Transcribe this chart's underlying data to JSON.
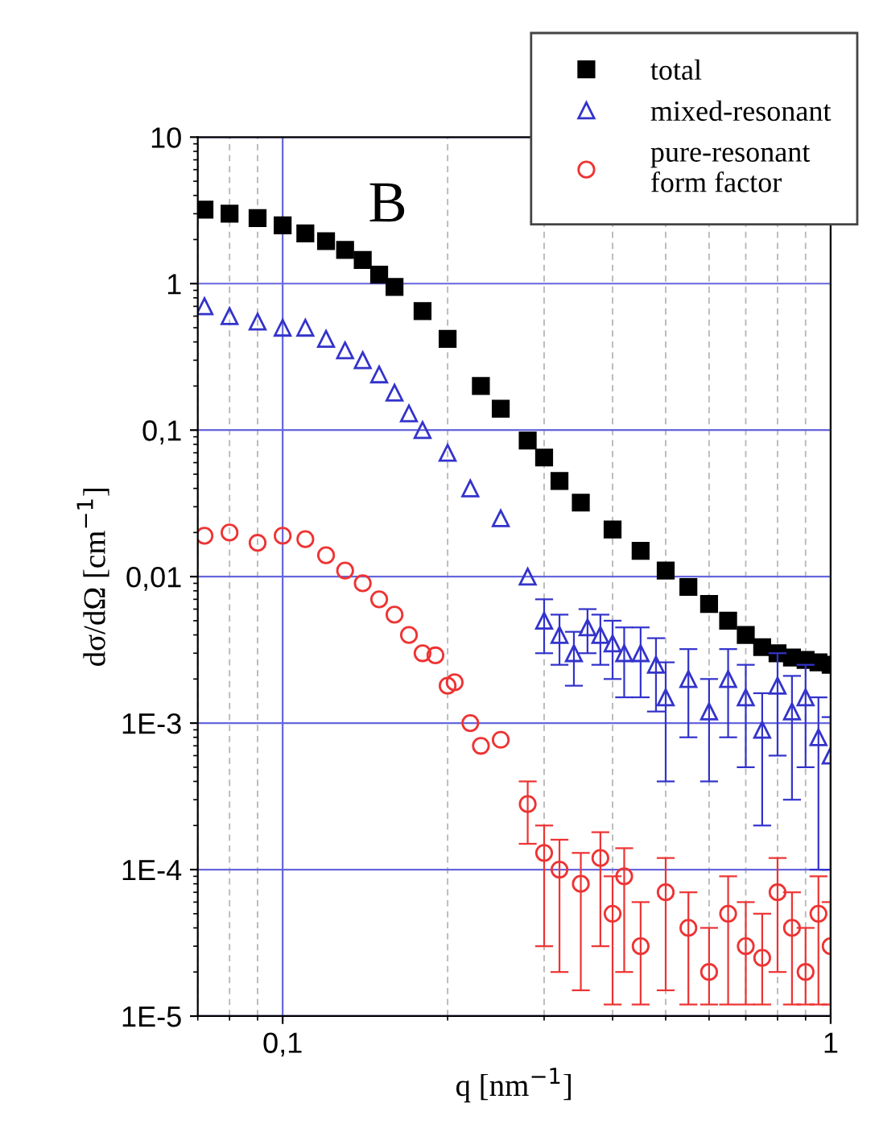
{
  "chart_data": {
    "type": "scatter",
    "xlabel": "q [nm$^{−1}$]",
    "ylabel": "dσ/dΩ [cm$^{−1}$]",
    "log": "xy",
    "grid": true,
    "legend": "top right",
    "xlim": [
      0.07,
      1
    ],
    "xticks": [
      {
        "value": 0.1,
        "label": "0,1"
      },
      1
    ],
    "ylim": [
      1e-05,
      10
    ],
    "yticks": [
      10,
      1,
      {
        "value": 0.1,
        "label": "0,1"
      },
      {
        "value": 0.01,
        "label": "0,01"
      },
      {
        "value": 0.001,
        "label": "1E-3"
      },
      {
        "value": 0.0001,
        "label": "1E-4"
      },
      {
        "value": 1e-05,
        "label": "1E-5"
      }
    ],
    "annotations": [
      "B"
    ],
    "series": [
      {
        "name": "total",
        "color": "#000000",
        "marker": "square",
        "x": [
          0.072,
          0.08,
          0.09,
          0.1,
          0.11,
          0.12,
          0.13,
          0.14,
          0.15,
          0.16,
          0.18,
          0.2,
          0.23,
          0.25,
          0.28,
          0.3,
          0.32,
          0.35,
          0.4,
          0.45,
          0.5,
          0.55,
          0.6,
          0.65,
          0.7,
          0.75,
          0.8,
          0.85,
          0.9,
          0.95,
          1.0
        ],
        "values": [
          3.2,
          3.0,
          2.8,
          2.5,
          2.2,
          1.95,
          1.7,
          1.45,
          1.15,
          0.95,
          0.65,
          0.42,
          0.2,
          0.14,
          0.085,
          0.065,
          0.045,
          0.032,
          0.021,
          0.015,
          0.011,
          0.0085,
          0.0065,
          0.005,
          0.004,
          0.0033,
          0.003,
          0.0028,
          0.0027,
          0.0026,
          0.0025
        ]
      },
      {
        "name": "mixed-resonant",
        "color": "#3333cc",
        "marker": "triangle",
        "x": [
          0.072,
          0.08,
          0.09,
          0.1,
          0.11,
          0.12,
          0.13,
          0.14,
          0.15,
          0.16,
          0.17,
          0.18,
          0.2,
          0.22,
          0.25,
          0.28,
          0.3,
          0.32,
          0.34,
          0.36,
          0.38,
          0.4,
          0.42,
          0.45,
          0.48,
          0.5,
          0.55,
          0.6,
          0.65,
          0.7,
          0.75,
          0.8,
          0.85,
          0.9,
          0.95,
          1.0
        ],
        "values": [
          0.7,
          0.6,
          0.55,
          0.5,
          0.5,
          0.42,
          0.35,
          0.3,
          0.24,
          0.18,
          0.13,
          0.1,
          0.07,
          0.04,
          0.025,
          0.01,
          0.005,
          0.004,
          0.003,
          0.0045,
          0.004,
          0.0035,
          0.003,
          0.003,
          0.0025,
          0.0015,
          0.002,
          0.0012,
          0.002,
          0.0015,
          0.0009,
          0.0018,
          0.0012,
          0.0015,
          0.0008,
          0.0006
        ],
        "errors": [
          null,
          null,
          null,
          null,
          null,
          null,
          null,
          null,
          null,
          null,
          null,
          null,
          null,
          null,
          null,
          null,
          [
            0.003,
            0.007
          ],
          [
            0.0025,
            0.0055
          ],
          [
            0.0018,
            0.0042
          ],
          [
            0.003,
            0.006
          ],
          [
            0.0025,
            0.0055
          ],
          [
            0.002,
            0.005
          ],
          [
            0.0015,
            0.0045
          ],
          [
            0.0015,
            0.0045
          ],
          [
            0.0012,
            0.0038
          ],
          [
            0.0004,
            0.0026
          ],
          [
            0.0008,
            0.0032
          ],
          [
            0.0004,
            0.002
          ],
          [
            0.0008,
            0.0032
          ],
          [
            0.0005,
            0.0025
          ],
          [
            0.0002,
            0.0016
          ],
          [
            0.0006,
            0.003
          ],
          [
            0.0003,
            0.0021
          ],
          [
            0.0005,
            0.0025
          ],
          [
            0.0001,
            0.0015
          ],
          [
            0.0001,
            0.0011
          ]
        ]
      },
      {
        "name": "pure-resonant\nform factor",
        "color": "#ee3333",
        "marker": "circle",
        "x": [
          0.072,
          0.08,
          0.09,
          0.1,
          0.11,
          0.12,
          0.13,
          0.14,
          0.15,
          0.16,
          0.17,
          0.18,
          0.19,
          0.2,
          0.206,
          0.22,
          0.23,
          0.25,
          0.28,
          0.3,
          0.32,
          0.35,
          0.38,
          0.4,
          0.42,
          0.45,
          0.5,
          0.55,
          0.6,
          0.65,
          0.7,
          0.75,
          0.8,
          0.85,
          0.9,
          0.95,
          1.0
        ],
        "values": [
          0.019,
          0.02,
          0.017,
          0.019,
          0.018,
          0.014,
          0.011,
          0.009,
          0.007,
          0.0055,
          0.004,
          0.003,
          0.0029,
          0.0018,
          0.0019,
          0.001,
          0.0007,
          0.00077,
          0.00028,
          0.00013,
          0.0001,
          8e-05,
          0.00012,
          5e-05,
          9e-05,
          3e-05,
          7e-05,
          4e-05,
          2e-05,
          5e-05,
          3e-05,
          2.5e-05,
          7e-05,
          4e-05,
          2e-05,
          5e-05,
          3e-05
        ],
        "errors": [
          null,
          null,
          null,
          null,
          null,
          null,
          null,
          null,
          null,
          null,
          null,
          null,
          null,
          null,
          null,
          null,
          null,
          null,
          [
            0.00015,
            0.0004
          ],
          [
            3e-05,
            0.0002
          ],
          [
            2e-05,
            0.00016
          ],
          [
            1.5e-05,
            0.00013
          ],
          [
            3e-05,
            0.00018
          ],
          [
            1.2e-05,
            9e-05
          ],
          [
            2e-05,
            0.00014
          ],
          [
            1.2e-05,
            6e-05
          ],
          [
            1.5e-05,
            0.00012
          ],
          [
            1.2e-05,
            7e-05
          ],
          [
            1.2e-05,
            4e-05
          ],
          [
            1.2e-05,
            9e-05
          ],
          [
            1.2e-05,
            6e-05
          ],
          [
            1.2e-05,
            5e-05
          ],
          [
            2e-05,
            0.00012
          ],
          [
            1.2e-05,
            7e-05
          ],
          [
            1.2e-05,
            4e-05
          ],
          [
            1.2e-05,
            9e-05
          ],
          [
            1.2e-05,
            6e-05
          ]
        ]
      }
    ]
  }
}
